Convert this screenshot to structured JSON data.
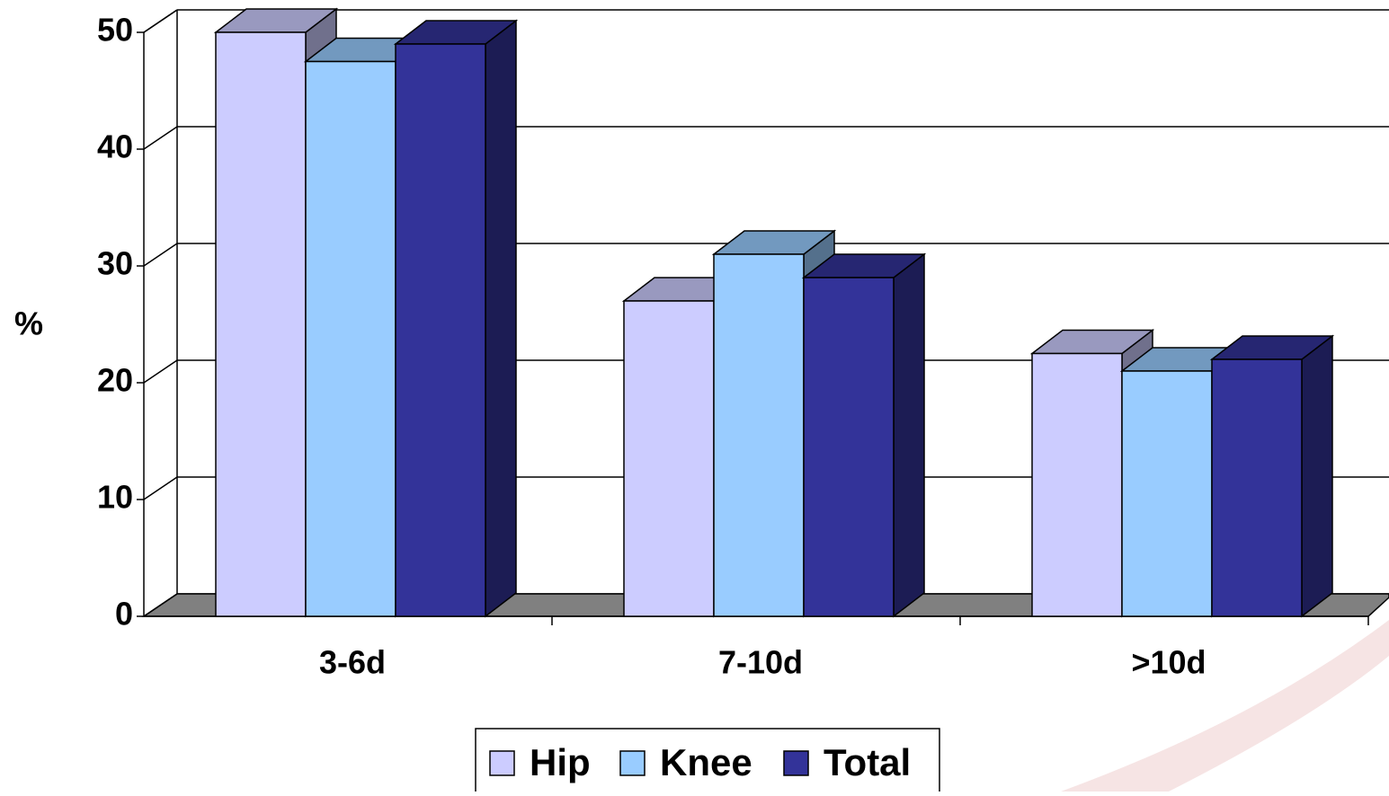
{
  "chart_data": {
    "type": "bar3d",
    "y_label": "%",
    "categories": [
      "3-6d",
      "7-10d",
      ">10d"
    ],
    "series": [
      {
        "name": "Hip",
        "color": "#ccccff",
        "values": [
          50,
          27,
          22.5
        ]
      },
      {
        "name": "Knee",
        "color": "#99ccff",
        "values": [
          47.5,
          31,
          21
        ]
      },
      {
        "name": "Total",
        "color": "#333399",
        "values": [
          49,
          29,
          22
        ]
      }
    ],
    "ylim": [
      0,
      50
    ],
    "yticks": [
      0,
      10,
      20,
      30,
      40,
      50
    ],
    "grid": true,
    "legend": "bottom"
  }
}
